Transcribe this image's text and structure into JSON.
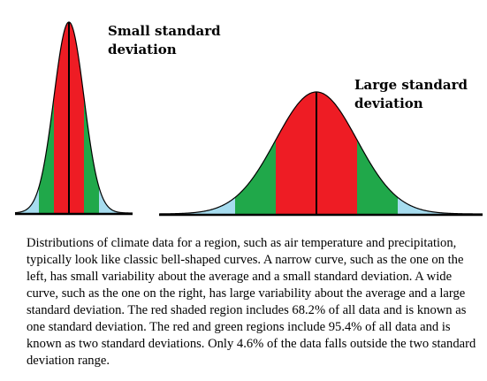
{
  "labels": {
    "small_curve": "Small standard\ndeviation",
    "large_curve": "Large standard\ndeviation"
  },
  "caption": "Distributions of climate data for a region, such as air temperature and precipitation, typically look like classic bell-shaped curves. A narrow curve, such as the one on the left, has small variability about the average and a small standard deviation. A wide curve, such as the one on the right, has large variability about the average and a large standard deviation. The red shaded region includes 68.2% of all data and is known as one standard deviation. The red and green regions include 95.4% of all data and is known as two standard deviations. Only 4.6% of the data falls outside the two standard deviation range.",
  "colors": {
    "one_sd": "#ee1c24",
    "two_sd": "#20a84a",
    "tails": "#a6dcef",
    "outline": "#000000",
    "tail_edge": "#3a6fb0"
  }
}
